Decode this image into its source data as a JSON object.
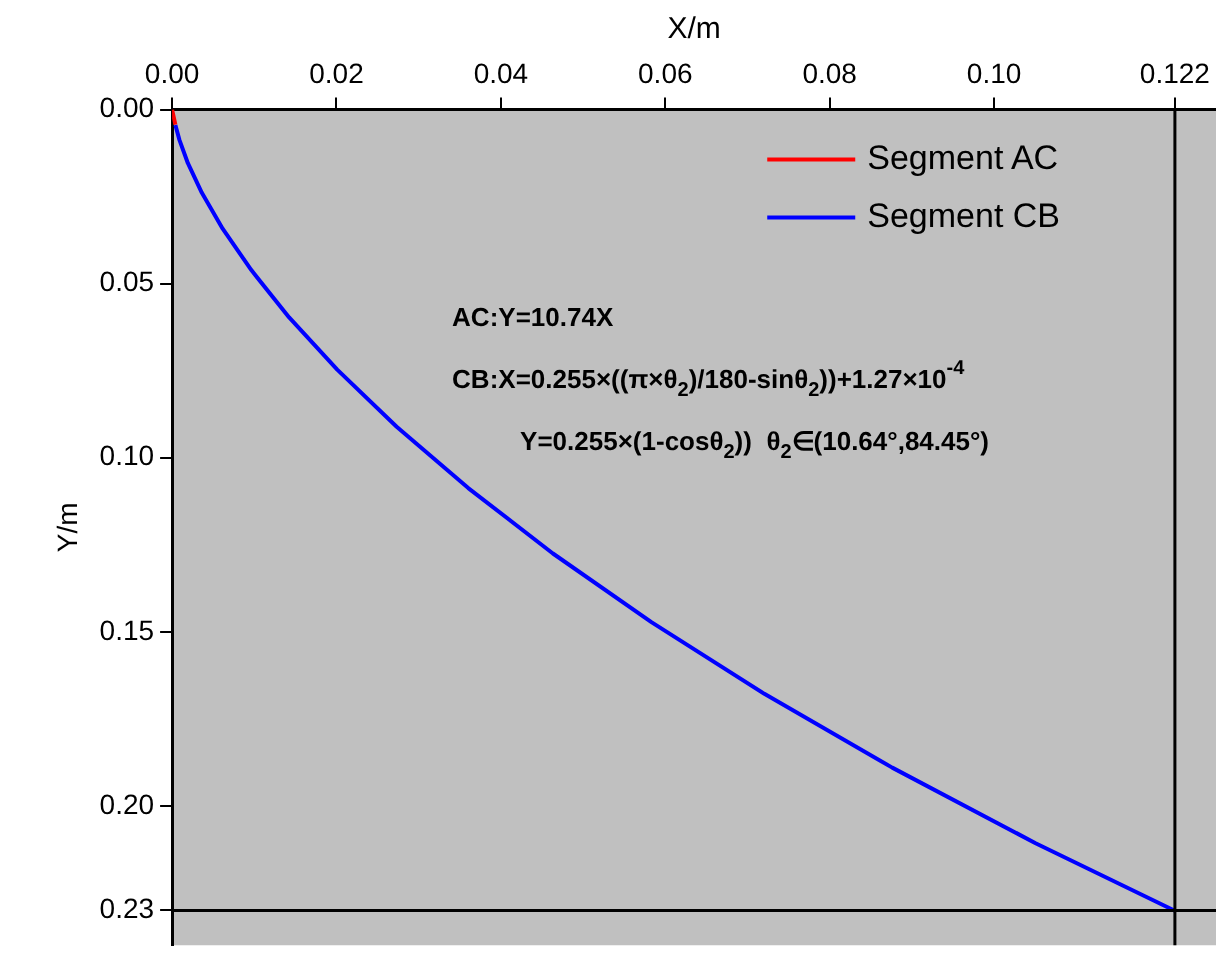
{
  "chart_data": {
    "type": "line",
    "xlabel": "X/m",
    "ylabel": "Y/m",
    "xlim": [
      0,
      0.127
    ],
    "ylim": [
      0.24,
      0
    ],
    "xticks": [
      {
        "value": 0,
        "label": "0.00"
      },
      0.02,
      0.04,
      0.06,
      0.08,
      {
        "value": 0.1,
        "label": "0.10"
      },
      0.122
    ],
    "yticks": [
      {
        "value": 0,
        "label": "0.00"
      },
      0.05,
      {
        "value": 0.1,
        "label": "0.10"
      },
      0.15,
      {
        "value": 0.2,
        "label": "0.20"
      },
      0.23
    ],
    "series": [
      {
        "name": "Segment AC",
        "color": "#ff0000",
        "x": [
          0,
          0.0004
        ],
        "values": [
          0,
          0.0043
        ]
      },
      {
        "name": "Segment CB",
        "color": "#0000ff",
        "x": [
          0.0004,
          0.00089,
          0.00192,
          0.00362,
          0.00615,
          0.00964,
          0.01424,
          0.02009,
          0.02732,
          0.03603,
          0.04633,
          0.05831,
          0.07205,
          0.08761,
          0.10505,
          0.12218
        ],
        "values": [
          0.0044,
          0.0087,
          0.0154,
          0.0239,
          0.0342,
          0.0461,
          0.0597,
          0.0747,
          0.0911,
          0.1087,
          0.1275,
          0.1472,
          0.1678,
          0.189,
          0.2107,
          0.2303
        ]
      }
    ],
    "ref_lines": [
      {
        "axis": "x",
        "value": 0.122,
        "color": "#000000"
      },
      {
        "axis": "y",
        "value": 0.23,
        "color": "#000000"
      }
    ],
    "annotations": [
      "AC:Y=10.74X",
      "CB:X=0.255×((π×θ$_{2}$)/180-sinθ$_{2}$))+1.27×10$^{-4}$",
      "Y=0.255×(1-cosθ$_{2}$))  θ$_{2}$∈(10.64°,84.45°)"
    ],
    "legend": "top right",
    "grid": false,
    "marker": "none",
    "line_style": "solid"
  }
}
